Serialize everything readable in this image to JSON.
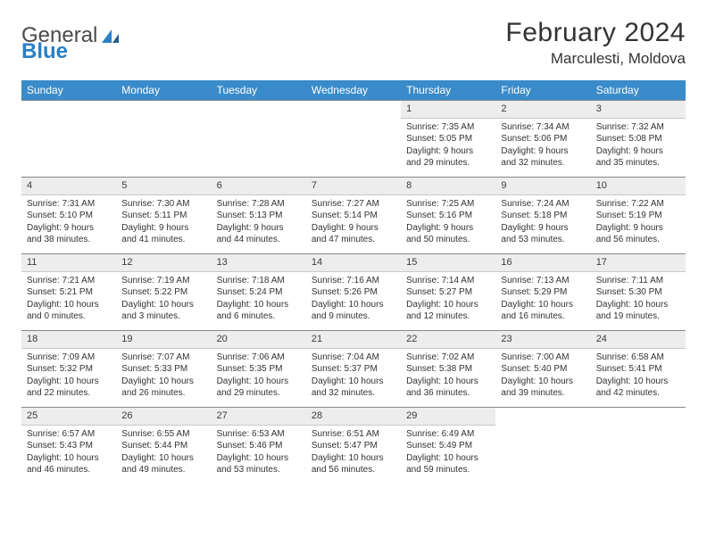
{
  "logo": {
    "part1": "General",
    "part2": "Blue"
  },
  "title": "February 2024",
  "location": "Marculesti, Moldova",
  "colors": {
    "header_band": "#3a8bc9",
    "daynum_bg": "#ededed",
    "rule": "#888888",
    "text": "#333333",
    "logo_blue": "#2b7fc4"
  },
  "weekdays": [
    "Sunday",
    "Monday",
    "Tuesday",
    "Wednesday",
    "Thursday",
    "Friday",
    "Saturday"
  ],
  "weeks": [
    [
      null,
      null,
      null,
      null,
      {
        "n": "1",
        "sr": "Sunrise: 7:35 AM",
        "ss": "Sunset: 5:05 PM",
        "dl": "Daylight: 9 hours and 29 minutes."
      },
      {
        "n": "2",
        "sr": "Sunrise: 7:34 AM",
        "ss": "Sunset: 5:06 PM",
        "dl": "Daylight: 9 hours and 32 minutes."
      },
      {
        "n": "3",
        "sr": "Sunrise: 7:32 AM",
        "ss": "Sunset: 5:08 PM",
        "dl": "Daylight: 9 hours and 35 minutes."
      }
    ],
    [
      {
        "n": "4",
        "sr": "Sunrise: 7:31 AM",
        "ss": "Sunset: 5:10 PM",
        "dl": "Daylight: 9 hours and 38 minutes."
      },
      {
        "n": "5",
        "sr": "Sunrise: 7:30 AM",
        "ss": "Sunset: 5:11 PM",
        "dl": "Daylight: 9 hours and 41 minutes."
      },
      {
        "n": "6",
        "sr": "Sunrise: 7:28 AM",
        "ss": "Sunset: 5:13 PM",
        "dl": "Daylight: 9 hours and 44 minutes."
      },
      {
        "n": "7",
        "sr": "Sunrise: 7:27 AM",
        "ss": "Sunset: 5:14 PM",
        "dl": "Daylight: 9 hours and 47 minutes."
      },
      {
        "n": "8",
        "sr": "Sunrise: 7:25 AM",
        "ss": "Sunset: 5:16 PM",
        "dl": "Daylight: 9 hours and 50 minutes."
      },
      {
        "n": "9",
        "sr": "Sunrise: 7:24 AM",
        "ss": "Sunset: 5:18 PM",
        "dl": "Daylight: 9 hours and 53 minutes."
      },
      {
        "n": "10",
        "sr": "Sunrise: 7:22 AM",
        "ss": "Sunset: 5:19 PM",
        "dl": "Daylight: 9 hours and 56 minutes."
      }
    ],
    [
      {
        "n": "11",
        "sr": "Sunrise: 7:21 AM",
        "ss": "Sunset: 5:21 PM",
        "dl": "Daylight: 10 hours and 0 minutes."
      },
      {
        "n": "12",
        "sr": "Sunrise: 7:19 AM",
        "ss": "Sunset: 5:22 PM",
        "dl": "Daylight: 10 hours and 3 minutes."
      },
      {
        "n": "13",
        "sr": "Sunrise: 7:18 AM",
        "ss": "Sunset: 5:24 PM",
        "dl": "Daylight: 10 hours and 6 minutes."
      },
      {
        "n": "14",
        "sr": "Sunrise: 7:16 AM",
        "ss": "Sunset: 5:26 PM",
        "dl": "Daylight: 10 hours and 9 minutes."
      },
      {
        "n": "15",
        "sr": "Sunrise: 7:14 AM",
        "ss": "Sunset: 5:27 PM",
        "dl": "Daylight: 10 hours and 12 minutes."
      },
      {
        "n": "16",
        "sr": "Sunrise: 7:13 AM",
        "ss": "Sunset: 5:29 PM",
        "dl": "Daylight: 10 hours and 16 minutes."
      },
      {
        "n": "17",
        "sr": "Sunrise: 7:11 AM",
        "ss": "Sunset: 5:30 PM",
        "dl": "Daylight: 10 hours and 19 minutes."
      }
    ],
    [
      {
        "n": "18",
        "sr": "Sunrise: 7:09 AM",
        "ss": "Sunset: 5:32 PM",
        "dl": "Daylight: 10 hours and 22 minutes."
      },
      {
        "n": "19",
        "sr": "Sunrise: 7:07 AM",
        "ss": "Sunset: 5:33 PM",
        "dl": "Daylight: 10 hours and 26 minutes."
      },
      {
        "n": "20",
        "sr": "Sunrise: 7:06 AM",
        "ss": "Sunset: 5:35 PM",
        "dl": "Daylight: 10 hours and 29 minutes."
      },
      {
        "n": "21",
        "sr": "Sunrise: 7:04 AM",
        "ss": "Sunset: 5:37 PM",
        "dl": "Daylight: 10 hours and 32 minutes."
      },
      {
        "n": "22",
        "sr": "Sunrise: 7:02 AM",
        "ss": "Sunset: 5:38 PM",
        "dl": "Daylight: 10 hours and 36 minutes."
      },
      {
        "n": "23",
        "sr": "Sunrise: 7:00 AM",
        "ss": "Sunset: 5:40 PM",
        "dl": "Daylight: 10 hours and 39 minutes."
      },
      {
        "n": "24",
        "sr": "Sunrise: 6:58 AM",
        "ss": "Sunset: 5:41 PM",
        "dl": "Daylight: 10 hours and 42 minutes."
      }
    ],
    [
      {
        "n": "25",
        "sr": "Sunrise: 6:57 AM",
        "ss": "Sunset: 5:43 PM",
        "dl": "Daylight: 10 hours and 46 minutes."
      },
      {
        "n": "26",
        "sr": "Sunrise: 6:55 AM",
        "ss": "Sunset: 5:44 PM",
        "dl": "Daylight: 10 hours and 49 minutes."
      },
      {
        "n": "27",
        "sr": "Sunrise: 6:53 AM",
        "ss": "Sunset: 5:46 PM",
        "dl": "Daylight: 10 hours and 53 minutes."
      },
      {
        "n": "28",
        "sr": "Sunrise: 6:51 AM",
        "ss": "Sunset: 5:47 PM",
        "dl": "Daylight: 10 hours and 56 minutes."
      },
      {
        "n": "29",
        "sr": "Sunrise: 6:49 AM",
        "ss": "Sunset: 5:49 PM",
        "dl": "Daylight: 10 hours and 59 minutes."
      },
      null,
      null
    ]
  ]
}
